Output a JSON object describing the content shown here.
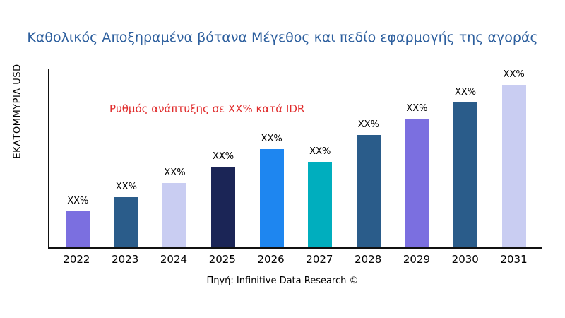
{
  "title": "Καθολικός Αποξηραμένα βότανα Μέγεθος και πεδίο εφαρμογής της αγοράς",
  "annotation": "Ρυθμός ανάπτυξης σε XX% κατά IDR",
  "y_axis_label": "ΕΚΑΤΟΜΜΥΡΙΑ USD",
  "source": "Πηγή: Infinitive Data Research ©",
  "annotation_color": "#e02b2b",
  "title_color": "#2d5f9e",
  "chart_data": {
    "type": "bar",
    "title": "Καθολικός Αποξηραμένα βότανα Μέγεθος και πεδίο εφαρμογής της αγοράς",
    "xlabel": "",
    "ylabel": "ΕΚΑΤΟΜΜΥΡΙΑ USD",
    "categories": [
      "2022",
      "2023",
      "2024",
      "2025",
      "2026",
      "2027",
      "2028",
      "2029",
      "2030",
      "2031"
    ],
    "values": [
      20,
      28,
      36,
      45,
      55,
      48,
      63,
      72,
      81,
      91
    ],
    "ylim": [
      0,
      100
    ],
    "bar_labels": [
      "XX%",
      "XX%",
      "XX%",
      "XX%",
      "XX%",
      "XX%",
      "XX%",
      "XX%",
      "XX%",
      "XX%"
    ],
    "colors": [
      "#7b6fe0",
      "#2a5c8a",
      "#c9cdf2",
      "#1b2556",
      "#1e86f0",
      "#00aebe",
      "#2a5c8a",
      "#7b6fe0",
      "#2a5c8a",
      "#c9cdf2"
    ],
    "grid": false,
    "legend": "none",
    "annotations": [
      "Ρυθμός ανάπτυξης σε XX% κατά IDR"
    ]
  }
}
